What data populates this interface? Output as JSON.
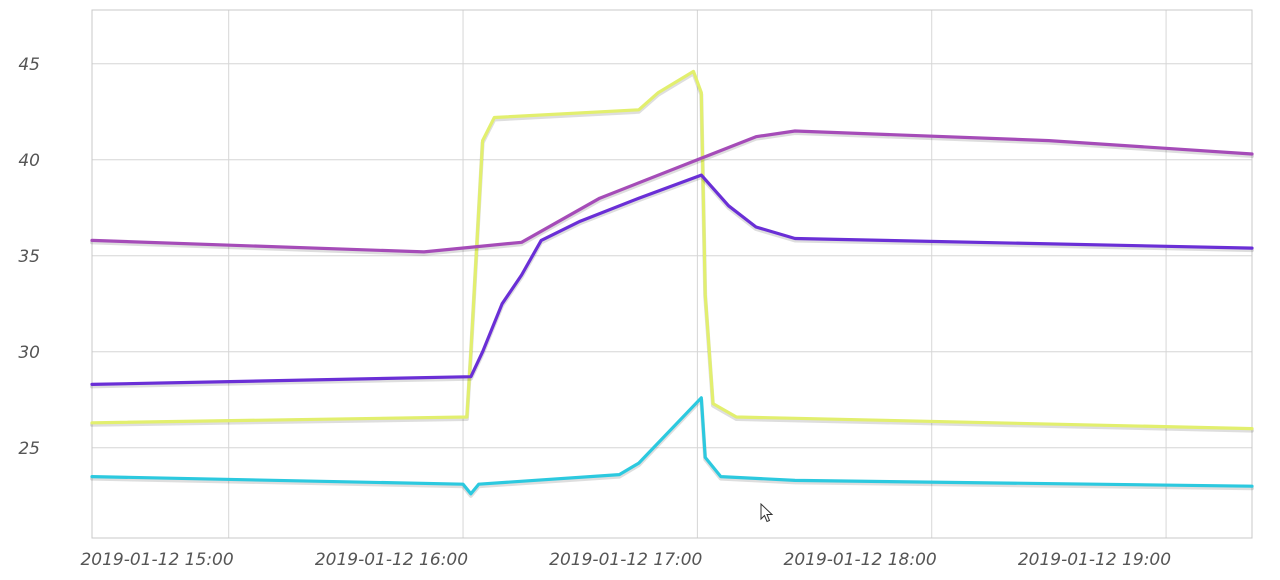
{
  "chart_data": {
    "type": "line",
    "title": "",
    "xlabel": "",
    "ylabel": "",
    "xlim": [
      "2019-01-12 14:25",
      "2019-01-12 19:22"
    ],
    "ylim": [
      20.3,
      47.8
    ],
    "grid": true,
    "y_ticks": [
      25,
      30,
      35,
      40,
      45
    ],
    "y_tick_labels": [
      "25",
      "30",
      "35",
      "40",
      "45"
    ],
    "x_ticks": [
      "2019-01-12 15:00",
      "2019-01-12 16:00",
      "2019-01-12 17:00",
      "2019-01-12 18:00",
      "2019-01-12 19:00"
    ],
    "x_tick_labels": [
      "2019-01-12 15:00",
      "2019-01-12 16:00",
      "2019-01-12 17:00",
      "2019-01-12 18:00",
      "2019-01-12 19:00"
    ],
    "series": [
      {
        "color": "#e2ef6e",
        "points": [
          [
            "2019-01-12 14:25",
            26.3
          ],
          [
            "2019-01-12 16:01",
            26.6
          ],
          [
            "2019-01-12 16:02",
            30.0
          ],
          [
            "2019-01-12 16:05",
            41.0
          ],
          [
            "2019-01-12 16:08",
            42.2
          ],
          [
            "2019-01-12 16:45",
            42.6
          ],
          [
            "2019-01-12 16:50",
            43.5
          ],
          [
            "2019-01-12 16:59",
            44.6
          ],
          [
            "2019-01-12 17:01",
            43.5
          ],
          [
            "2019-01-12 17:02",
            33.0
          ],
          [
            "2019-01-12 17:04",
            27.3
          ],
          [
            "2019-01-12 17:10",
            26.6
          ],
          [
            "2019-01-12 19:22",
            26.0
          ]
        ]
      },
      {
        "color": "#a54cb8",
        "points": [
          [
            "2019-01-12 14:25",
            35.8
          ],
          [
            "2019-01-12 15:50",
            35.2
          ],
          [
            "2019-01-12 16:15",
            35.7
          ],
          [
            "2019-01-12 16:35",
            38.0
          ],
          [
            "2019-01-12 17:00",
            40.0
          ],
          [
            "2019-01-12 17:15",
            41.2
          ],
          [
            "2019-01-12 17:25",
            41.5
          ],
          [
            "2019-01-12 18:30",
            41.0
          ],
          [
            "2019-01-12 19:22",
            40.3
          ]
        ]
      },
      {
        "color": "#6a2fd6",
        "points": [
          [
            "2019-01-12 14:25",
            28.3
          ],
          [
            "2019-01-12 16:02",
            28.7
          ],
          [
            "2019-01-12 16:05",
            30.0
          ],
          [
            "2019-01-12 16:10",
            32.5
          ],
          [
            "2019-01-12 16:15",
            34.0
          ],
          [
            "2019-01-12 16:20",
            35.8
          ],
          [
            "2019-01-12 16:30",
            36.8
          ],
          [
            "2019-01-12 16:45",
            38.0
          ],
          [
            "2019-01-12 17:01",
            39.2
          ],
          [
            "2019-01-12 17:08",
            37.6
          ],
          [
            "2019-01-12 17:15",
            36.5
          ],
          [
            "2019-01-12 17:25",
            35.9
          ],
          [
            "2019-01-12 19:22",
            35.4
          ]
        ]
      },
      {
        "color": "#2cc9df",
        "points": [
          [
            "2019-01-12 14:25",
            23.5
          ],
          [
            "2019-01-12 16:00",
            23.1
          ],
          [
            "2019-01-12 16:02",
            22.6
          ],
          [
            "2019-01-12 16:04",
            23.1
          ],
          [
            "2019-01-12 16:40",
            23.6
          ],
          [
            "2019-01-12 16:45",
            24.2
          ],
          [
            "2019-01-12 17:01",
            27.6
          ],
          [
            "2019-01-12 17:02",
            24.5
          ],
          [
            "2019-01-12 17:06",
            23.5
          ],
          [
            "2019-01-12 17:25",
            23.3
          ],
          [
            "2019-01-12 19:22",
            23.0
          ]
        ]
      }
    ]
  }
}
